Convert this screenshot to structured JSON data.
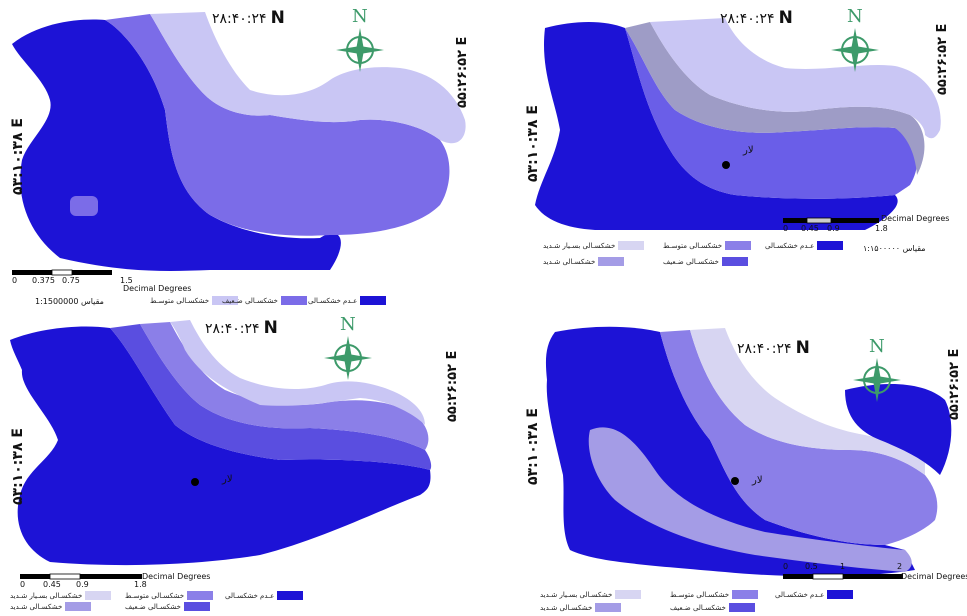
{
  "coords": {
    "top": "۲۸:۴۰:۲۴",
    "north_letter": "N",
    "left": "۵۳:۱۰:۳۸",
    "left_letter": "E",
    "right": "۵۵:۲۶:۵۲",
    "right_letter": "E"
  },
  "compass_letter": "N",
  "city": "لار",
  "scale_unit": "Decimal Degrees",
  "colors": {
    "none": "#1d13d6",
    "weak": "#7b6ce8",
    "moderate": "#c9c6f4",
    "severe": "#a49ce6",
    "very_severe": "#d7d5f2",
    "darkgray": "#9e9cc6"
  },
  "panels": [
    {
      "scale_ticks": [
        "0",
        "0.375",
        "0.75",
        "1.5"
      ],
      "scale_text": "مقیاس 1:1500000",
      "legend": [
        {
          "label": "عـدم خشکسـالی",
          "color": "#1d13d6"
        },
        {
          "label": "خشکسـالی ضـعیف",
          "color": "#7b6ce8"
        },
        {
          "label": "خشکسـالی متوسـط",
          "color": "#c9c6f4"
        }
      ]
    },
    {
      "scale_ticks": [
        "0",
        "0.45",
        "0.9",
        "1.8"
      ],
      "scale_text": "مقیاس ۱:۱۵۰۰۰۰۰",
      "legend": [
        {
          "label": "عـدم خشکسـالی",
          "color": "#1d13d6"
        },
        {
          "label": "خشکسـالی متوسـط",
          "color": "#8b7fe8"
        },
        {
          "label": "خشکسـالی ضـعیف",
          "color": "#5a4ee0"
        },
        {
          "label": "خشکسـالی بسـیار شـدید",
          "color": "#d7d5f2"
        },
        {
          "label": "خشکسـالی شـدید",
          "color": "#a49ce6"
        }
      ]
    },
    {
      "scale_ticks": [
        "0",
        "0.45",
        "0.9",
        "1.8"
      ],
      "legend": [
        {
          "label": "عـدم خشکسـالی",
          "color": "#1d13d6"
        },
        {
          "label": "خشکسـالی متوسـط",
          "color": "#8b7fe8"
        },
        {
          "label": "خشکسـالی ضـعیف",
          "color": "#5a4ee0"
        },
        {
          "label": "خشکسـالی بسـیار شـدید",
          "color": "#d7d5f2"
        },
        {
          "label": "خشکسـالی شـدید",
          "color": "#a49ce6"
        }
      ]
    },
    {
      "scale_ticks": [
        "0",
        "0.5",
        "1",
        "2"
      ],
      "legend": [
        {
          "label": "عـدم خشکسـالی",
          "color": "#1d13d6"
        },
        {
          "label": "خشکسـالی متوسـط",
          "color": "#8b7fe8"
        },
        {
          "label": "خشکسـالی ضـعیف",
          "color": "#5a4ee0"
        },
        {
          "label": "خشکسـالی بسـیار شـدید",
          "color": "#d7d5f2"
        },
        {
          "label": "خشکسـالی شـدید",
          "color": "#a49ce6"
        }
      ]
    }
  ]
}
